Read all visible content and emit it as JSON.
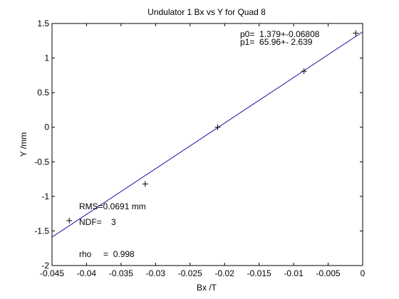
{
  "chart_data": {
    "type": "scatter",
    "title": "Undulator 1 Bx vs Y for Quad 8",
    "xlabel": "Bx /T",
    "ylabel": "Y /mm",
    "xlim": [
      -0.045,
      0
    ],
    "ylim": [
      -2,
      1.5
    ],
    "grid": false,
    "xticks": [
      -0.045,
      -0.04,
      -0.035,
      -0.03,
      -0.025,
      -0.02,
      -0.015,
      -0.01,
      -0.005,
      0
    ],
    "xtick_labels": [
      "-0.045",
      "-0.04",
      "-0.035",
      "-0.03",
      "-0.025",
      "-0.02",
      "-0.015",
      "-0.01",
      "-0.005",
      "0"
    ],
    "yticks": [
      -2,
      -1.5,
      -1,
      -0.5,
      0,
      0.5,
      1,
      1.5
    ],
    "ytick_labels": [
      "-2",
      "-1.5",
      "-1",
      "-0.5",
      "0",
      "0.5",
      "1",
      "1.5"
    ],
    "points": {
      "marker": "plus",
      "x": [
        -0.0425,
        -0.0315,
        -0.021,
        -0.0085,
        -0.001
      ],
      "y": [
        -1.35,
        -0.82,
        0.0,
        0.81,
        1.36
      ]
    },
    "fit_line": {
      "color": "#1a1aa6",
      "p0": 1.379,
      "p1": 65.96,
      "x_range": [
        -0.045,
        0
      ]
    },
    "annotations": {
      "p0": "p0=  1.379+-0.06808",
      "p1": "p1=  65.96+- 2.639",
      "rms": "RMS=0.0691 mm",
      "ndf": "NDF=    3",
      "rho": "rho     =  0.998"
    }
  }
}
